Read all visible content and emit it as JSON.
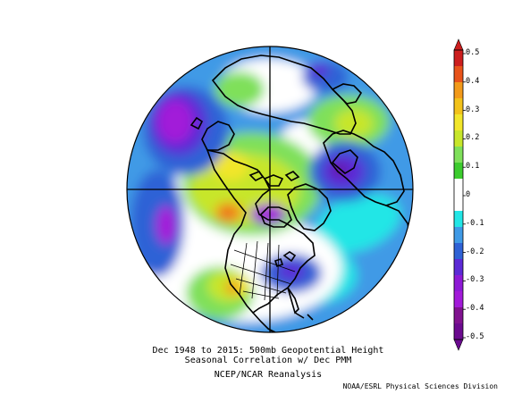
{
  "map": {
    "projection": "north-polar-stereographic",
    "field": "correlation",
    "colors": {
      "deep_purple": "#6b0a8f",
      "purple": "#a21ad9",
      "violet": "#5c2ad6",
      "blue": "#2f62d6",
      "light_blue": "#3f9ae6",
      "cyan": "#22e6e6",
      "white": "#ffffff",
      "light_green": "#7fe05a",
      "green": "#3ccc2e",
      "yellow_green": "#c7e62a",
      "yellow": "#f2e62a",
      "orange": "#f29a1a",
      "red_orange": "#e8531a",
      "red": "#cc1e1e",
      "land_outline": "#000000"
    }
  },
  "colorbar": {
    "orientation": "vertical",
    "position": "right",
    "labels": [
      "0.5",
      "0.4",
      "0.3",
      "0.2",
      "0.1",
      "0",
      "-0.1",
      "-0.2",
      "-0.3",
      "-0.4",
      "-0.5"
    ],
    "segment_colors": [
      "#cc1e1e",
      "#e8531a",
      "#f29a1a",
      "#f2c21a",
      "#f2e62a",
      "#c7e62a",
      "#7fe05a",
      "#3ccc2e",
      "#ffffff",
      "#ffffff",
      "#22e6e6",
      "#3f9ae6",
      "#2f62d6",
      "#5c2ad6",
      "#8e1ad6",
      "#a21ad9",
      "#80128f",
      "#6b0a8f"
    ]
  },
  "caption": {
    "line1": "Dec 1948 to 2015: 500mb Geopotential Height",
    "line2": "Seasonal Correlation w/ Dec PMM",
    "line3": "NCEP/NCAR Reanalysis"
  },
  "credit": "NOAA/ESRL Physical Sciences Division"
}
